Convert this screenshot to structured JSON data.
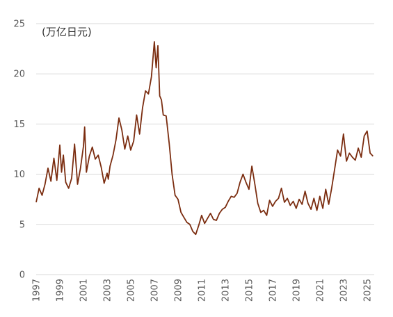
{
  "chart_data": {
    "type": "line",
    "unit_label": "(万亿日元)",
    "ylim": [
      0,
      25
    ],
    "y_ticks": [
      "0",
      "5",
      "10",
      "15",
      "20",
      "25"
    ],
    "xlim": [
      1997,
      2025.6
    ],
    "x_ticks": [
      "1997",
      "1999",
      "2001",
      "2003",
      "2005",
      "2007",
      "2009",
      "2011",
      "2013",
      "2015",
      "2017",
      "2019",
      "2021",
      "2023",
      "2025"
    ],
    "grid": "horizontal",
    "color": "#7b2d10",
    "series": [
      {
        "x": [
          1997.0,
          1997.25,
          1997.5,
          1997.75,
          1998.0,
          1998.25,
          1998.5,
          1998.75,
          1999.0,
          1999.15,
          1999.3,
          1999.5,
          1999.75,
          2000.0,
          2000.25,
          2000.5,
          2000.75,
          2001.0,
          2001.1,
          2001.25,
          2001.5,
          2001.75,
          2002.0,
          2002.25,
          2002.5,
          2002.75,
          2003.0,
          2003.1,
          2003.25,
          2003.5,
          2003.75,
          2004.0,
          2004.25,
          2004.5,
          2004.75,
          2005.0,
          2005.25,
          2005.5,
          2005.75,
          2006.0,
          2006.25,
          2006.5,
          2006.75,
          2007.0,
          2007.15,
          2007.3,
          2007.45,
          2007.6,
          2007.75,
          2008.0,
          2008.25,
          2008.5,
          2008.75,
          2009.0,
          2009.25,
          2009.5,
          2009.75,
          2010.0,
          2010.25,
          2010.5,
          2010.75,
          2011.0,
          2011.25,
          2011.5,
          2011.75,
          2012.0,
          2012.25,
          2012.5,
          2012.75,
          2013.0,
          2013.25,
          2013.5,
          2013.75,
          2014.0,
          2014.25,
          2014.5,
          2014.75,
          2015.0,
          2015.25,
          2015.5,
          2015.75,
          2016.0,
          2016.25,
          2016.5,
          2016.75,
          2017.0,
          2017.25,
          2017.5,
          2017.75,
          2018.0,
          2018.25,
          2018.5,
          2018.75,
          2019.0,
          2019.25,
          2019.5,
          2019.75,
          2020.0,
          2020.25,
          2020.5,
          2020.75,
          2021.0,
          2021.25,
          2021.5,
          2021.75,
          2022.0,
          2022.25,
          2022.5,
          2022.75,
          2023.0,
          2023.25,
          2023.5,
          2023.75,
          2024.0,
          2024.25,
          2024.5,
          2024.75,
          2025.0,
          2025.25,
          2025.5
        ],
        "y": [
          7.2,
          8.6,
          7.9,
          9.0,
          10.6,
          9.3,
          11.6,
          9.4,
          12.9,
          10.2,
          11.9,
          9.2,
          8.6,
          9.6,
          13.0,
          9.0,
          10.6,
          12.8,
          14.7,
          10.2,
          11.8,
          12.7,
          11.5,
          11.9,
          10.7,
          9.1,
          10.1,
          9.5,
          10.8,
          11.9,
          13.4,
          15.6,
          14.4,
          12.5,
          13.8,
          12.4,
          13.3,
          15.9,
          14.0,
          16.6,
          18.3,
          18.0,
          19.7,
          23.2,
          20.6,
          22.8,
          17.8,
          17.4,
          15.9,
          15.8,
          13.1,
          10.0,
          7.9,
          7.5,
          6.2,
          5.7,
          5.2,
          5.0,
          4.3,
          4.0,
          4.9,
          5.9,
          5.1,
          5.6,
          6.1,
          5.5,
          5.4,
          6.1,
          6.5,
          6.7,
          7.3,
          7.8,
          7.7,
          8.1,
          9.2,
          10.0,
          9.2,
          8.5,
          10.8,
          9.0,
          7.1,
          6.2,
          6.4,
          5.9,
          7.4,
          6.8,
          7.3,
          7.6,
          8.6,
          7.2,
          7.6,
          6.9,
          7.3,
          6.6,
          7.5,
          7.0,
          8.3,
          7.1,
          6.5,
          7.6,
          6.4,
          7.8,
          6.6,
          8.5,
          7.0,
          8.6,
          10.5,
          12.4,
          11.8,
          14.0,
          11.3,
          12.1,
          11.7,
          11.4,
          12.6,
          11.7,
          13.8,
          14.3,
          12.1,
          11.8
        ]
      }
    ]
  }
}
